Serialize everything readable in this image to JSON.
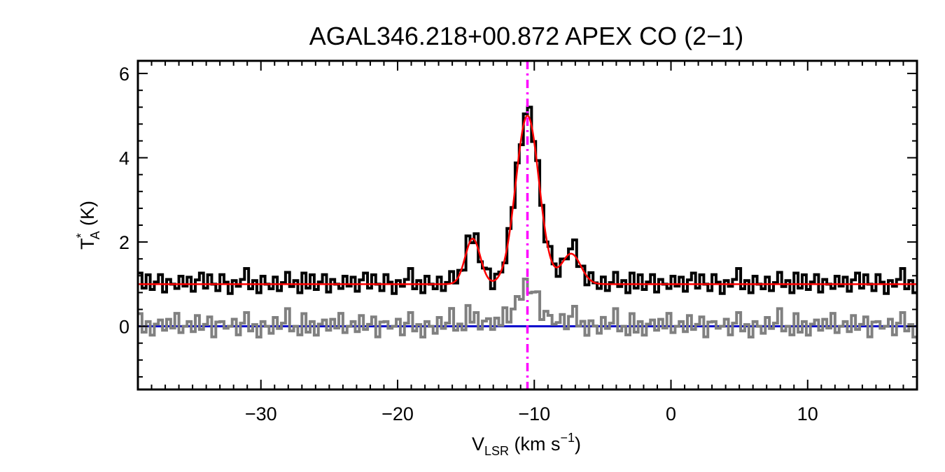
{
  "chart_data": {
    "type": "line",
    "title": "AGAL346.218+00.872  APEX CO (2−1)",
    "xlabel": {
      "main": "V",
      "sub": "LSR",
      "units": " (km s",
      "sup": "−1",
      "close": ")"
    },
    "ylabel": {
      "main": "T",
      "sup": "*",
      "sub": "A",
      "units": " (K)"
    },
    "xlim": [
      -39,
      18
    ],
    "ylim": [
      -1.5,
      6.3
    ],
    "x_ticks": [
      -30,
      -20,
      -10,
      0,
      10
    ],
    "x_tick_labels": [
      "−30",
      "−20",
      "−10",
      "0",
      "10"
    ],
    "y_ticks": [
      0,
      2,
      4,
      6
    ],
    "y_tick_labels": [
      "0",
      "2",
      "4",
      "6"
    ],
    "reference_line": {
      "x": -10.5,
      "color": "#ff00ff",
      "style": "dash-dot"
    },
    "baseline": {
      "y": 0,
      "color": "#0000cc"
    },
    "fit": {
      "color": "#ff0000",
      "offset": 1.0,
      "components": [
        {
          "amplitude": 4.0,
          "center": -10.5,
          "sigma": 0.85
        },
        {
          "amplitude": 1.08,
          "center": -14.5,
          "sigma": 0.55
        },
        {
          "amplitude": 0.72,
          "center": -7.3,
          "sigma": 0.7
        }
      ]
    },
    "series": [
      {
        "role": "spectrum",
        "color": "#000000",
        "offset": 1.0,
        "step": 0.3,
        "noise": [
          0.35,
          -0.1,
          0.2,
          -0.15,
          0.05,
          0.3,
          -0.2,
          0.1,
          0.0,
          -0.1,
          0.25,
          -0.05,
          0.15,
          -0.2,
          0.1,
          0.35,
          -0.1,
          0.2,
          0.0,
          -0.15,
          0.3,
          0.05,
          -0.2,
          0.1,
          -0.05,
          0.15,
          0.4,
          -0.1,
          0.1,
          -0.2,
          0.25,
          0.0,
          -0.1,
          0.2,
          -0.15,
          0.05,
          0.3,
          -0.05,
          0.1,
          -0.2
        ]
      },
      {
        "role": "residual",
        "color": "#808080",
        "offset": 0.0,
        "step": 0.3,
        "noise": [
          0.4,
          -0.15,
          0.1,
          -0.25,
          0.05,
          0.2,
          -0.1,
          0.15,
          -0.05,
          0.3,
          -0.2,
          0.0,
          0.1,
          -0.15,
          0.25,
          -0.1,
          0.05,
          0.2,
          -0.3,
          0.1,
          0.15,
          -0.05,
          0.0,
          0.2,
          -0.2,
          0.1,
          0.35,
          -0.1,
          0.05,
          -0.25,
          0.15,
          0.0,
          -0.15,
          0.25,
          -0.05,
          0.1,
          0.45,
          -0.1,
          0.0,
          -0.2
        ]
      }
    ]
  }
}
